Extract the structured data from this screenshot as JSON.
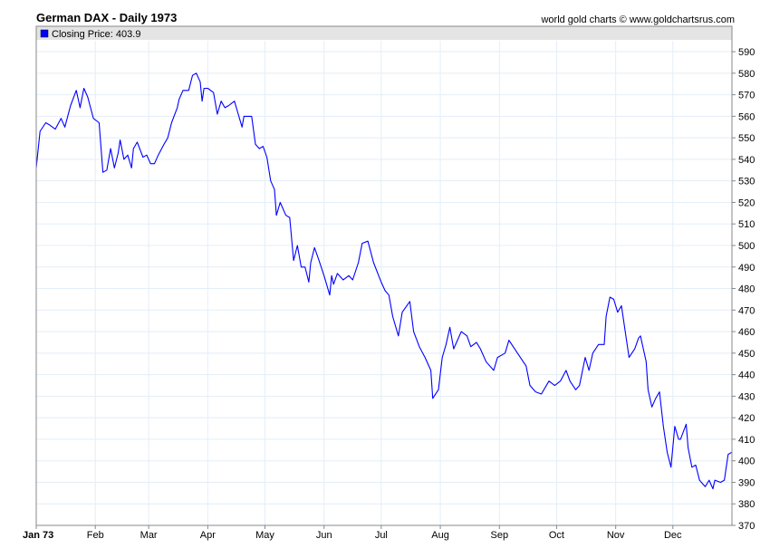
{
  "header": {
    "title": "German DAX - Daily 1973",
    "credit": "world gold charts © www.goldchartsrus.com"
  },
  "colors": {
    "line": "#0000ff",
    "grid": "#e3eef8",
    "legend_bg": "#e4e4e4"
  },
  "chart_data": {
    "type": "line",
    "title": "German DAX - Daily 1973",
    "xlabel": "",
    "ylabel": "",
    "ylim": [
      370,
      595
    ],
    "xlim": [
      0,
      365
    ],
    "grid": true,
    "legend": {
      "placement": "top-left",
      "label": "Closing Price: 403.9"
    },
    "y_ticks": [
      370,
      380,
      390,
      400,
      410,
      420,
      430,
      440,
      450,
      460,
      470,
      480,
      490,
      500,
      510,
      520,
      530,
      540,
      550,
      560,
      570,
      580,
      590
    ],
    "x_ticks": [
      {
        "label": "Jan 73",
        "day": 0
      },
      {
        "label": "Feb",
        "day": 31
      },
      {
        "label": "Mar",
        "day": 59
      },
      {
        "label": "Apr",
        "day": 90
      },
      {
        "label": "May",
        "day": 120
      },
      {
        "label": "Jun",
        "day": 151
      },
      {
        "label": "Jul",
        "day": 181
      },
      {
        "label": "Aug",
        "day": 212
      },
      {
        "label": "Sep",
        "day": 243
      },
      {
        "label": "Oct",
        "day": 273
      },
      {
        "label": "Nov",
        "day": 304
      },
      {
        "label": "Dec",
        "day": 334
      }
    ],
    "series": [
      {
        "name": "Closing Price",
        "x": [
          0,
          2,
          5,
          7,
          10,
          13,
          15,
          18,
          21,
          23,
          25,
          27,
          30,
          33,
          35,
          37,
          39,
          41,
          43,
          44,
          46,
          48,
          50,
          51,
          53,
          56,
          58,
          60,
          62,
          64,
          67,
          69,
          71,
          74,
          75,
          77,
          80,
          82,
          84,
          86,
          87,
          88,
          90,
          93,
          95,
          97,
          99,
          101,
          104,
          106,
          108,
          109,
          113,
          115,
          117,
          119,
          121,
          123,
          125,
          126,
          128,
          131,
          133,
          135,
          137,
          139,
          141,
          143,
          144,
          146,
          148,
          151,
          154,
          155,
          156,
          158,
          161,
          164,
          166,
          169,
          171,
          174,
          177,
          181,
          183,
          185,
          187,
          190,
          192,
          196,
          198,
          201,
          204,
          207,
          208,
          211,
          213,
          215,
          217,
          219,
          221,
          223,
          226,
          228,
          231,
          233,
          236,
          240,
          242,
          246,
          248,
          251,
          254,
          257,
          259,
          262,
          265,
          269,
          272,
          275,
          278,
          280,
          283,
          285,
          288,
          290,
          292,
          295,
          298,
          299,
          301,
          303,
          305,
          307,
          309,
          311,
          314,
          316,
          317,
          320,
          321,
          323,
          325,
          327,
          329,
          331,
          333,
          335,
          337,
          338,
          341,
          342,
          344,
          346,
          348,
          351,
          353,
          355,
          356,
          359,
          361,
          363,
          365
        ],
        "values": [
          536,
          553,
          557,
          556,
          554,
          559,
          555,
          565,
          572,
          564,
          573,
          569,
          559,
          557,
          534,
          535,
          545,
          536,
          543,
          549,
          540,
          542,
          536,
          545,
          548,
          541,
          542,
          538,
          538,
          542,
          547,
          550,
          557,
          564,
          568,
          572,
          572,
          579,
          580,
          576,
          567,
          573,
          573,
          571,
          561,
          567,
          564,
          565,
          567,
          561,
          555,
          560,
          560,
          547,
          545,
          546,
          541,
          530,
          526,
          514,
          520,
          514,
          513,
          493,
          500,
          490,
          490,
          483,
          492,
          499,
          494,
          486,
          477,
          486,
          482,
          487,
          484,
          486,
          484,
          492,
          501,
          502,
          492,
          483,
          479,
          477,
          467,
          458,
          469,
          474,
          460,
          453,
          448,
          442,
          429,
          433,
          448,
          454,
          462,
          452,
          456,
          460,
          458,
          453,
          455,
          452,
          446,
          442,
          448,
          450,
          456,
          452,
          448,
          444,
          435,
          432,
          431,
          437,
          435,
          437,
          442,
          437,
          433,
          435,
          448,
          442,
          450,
          454,
          454,
          467,
          476,
          475,
          469,
          472,
          460,
          448,
          452,
          457,
          458,
          446,
          433,
          425,
          429,
          432,
          416,
          404,
          397,
          416,
          410,
          410,
          417,
          406,
          397,
          398,
          391,
          388,
          391,
          387,
          391,
          390,
          391,
          403,
          404
        ]
      }
    ]
  }
}
